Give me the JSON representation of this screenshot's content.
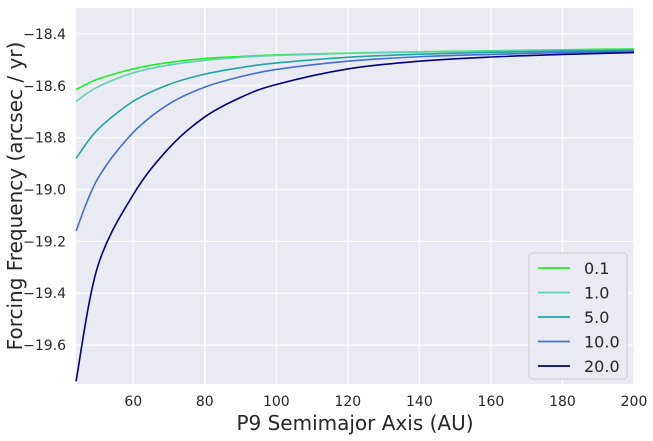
{
  "chart_data": {
    "type": "line",
    "title": "",
    "xlabel": "P9 Semimajor Axis (AU)",
    "ylabel": "Forcing Frequency (arcsec / yr)",
    "xlim": [
      44,
      200
    ],
    "ylim": [
      -19.75,
      -18.3
    ],
    "x_ticks": [
      60,
      80,
      100,
      120,
      140,
      160,
      180,
      200
    ],
    "y_ticks": [
      -18.4,
      -18.6,
      -18.8,
      -19.0,
      -19.2,
      -19.4,
      -19.6
    ],
    "x_tick_labels": [
      "60",
      "80",
      "100",
      "120",
      "140",
      "160",
      "180",
      "200"
    ],
    "y_tick_labels": [
      "−18.4",
      "−18.6",
      "−18.8",
      "−19.0",
      "−19.2",
      "−19.4",
      "−19.6"
    ],
    "grid": true,
    "legend_position": "lower-right",
    "x": [
      44,
      50,
      60,
      70,
      80,
      90,
      100,
      120,
      140,
      160,
      180,
      200
    ],
    "series": [
      {
        "name": "0.1",
        "color": "#22ee22",
        "values": [
          -18.615,
          -18.575,
          -18.535,
          -18.51,
          -18.495,
          -18.487,
          -18.481,
          -18.474,
          -18.469,
          -18.465,
          -18.461,
          -18.458
        ]
      },
      {
        "name": "1.0",
        "color": "#5fd3b0",
        "values": [
          -18.66,
          -18.605,
          -18.55,
          -18.52,
          -18.502,
          -18.49,
          -18.483,
          -18.475,
          -18.47,
          -18.466,
          -18.463,
          -18.46
        ]
      },
      {
        "name": "5.0",
        "color": "#21a5a5",
        "values": [
          -18.88,
          -18.77,
          -18.66,
          -18.595,
          -18.555,
          -18.53,
          -18.512,
          -18.49,
          -18.478,
          -18.471,
          -18.466,
          -18.462
        ]
      },
      {
        "name": "10.0",
        "color": "#3f6fd8",
        "values": [
          -19.16,
          -18.96,
          -18.78,
          -18.67,
          -18.605,
          -18.565,
          -18.537,
          -18.505,
          -18.488,
          -18.479,
          -18.472,
          -18.467
        ]
      },
      {
        "name": "20.0",
        "color": "#000080",
        "values": [
          -19.74,
          -19.3,
          -19.02,
          -18.84,
          -18.72,
          -18.645,
          -18.595,
          -18.535,
          -18.505,
          -18.489,
          -18.479,
          -18.472
        ]
      }
    ]
  }
}
